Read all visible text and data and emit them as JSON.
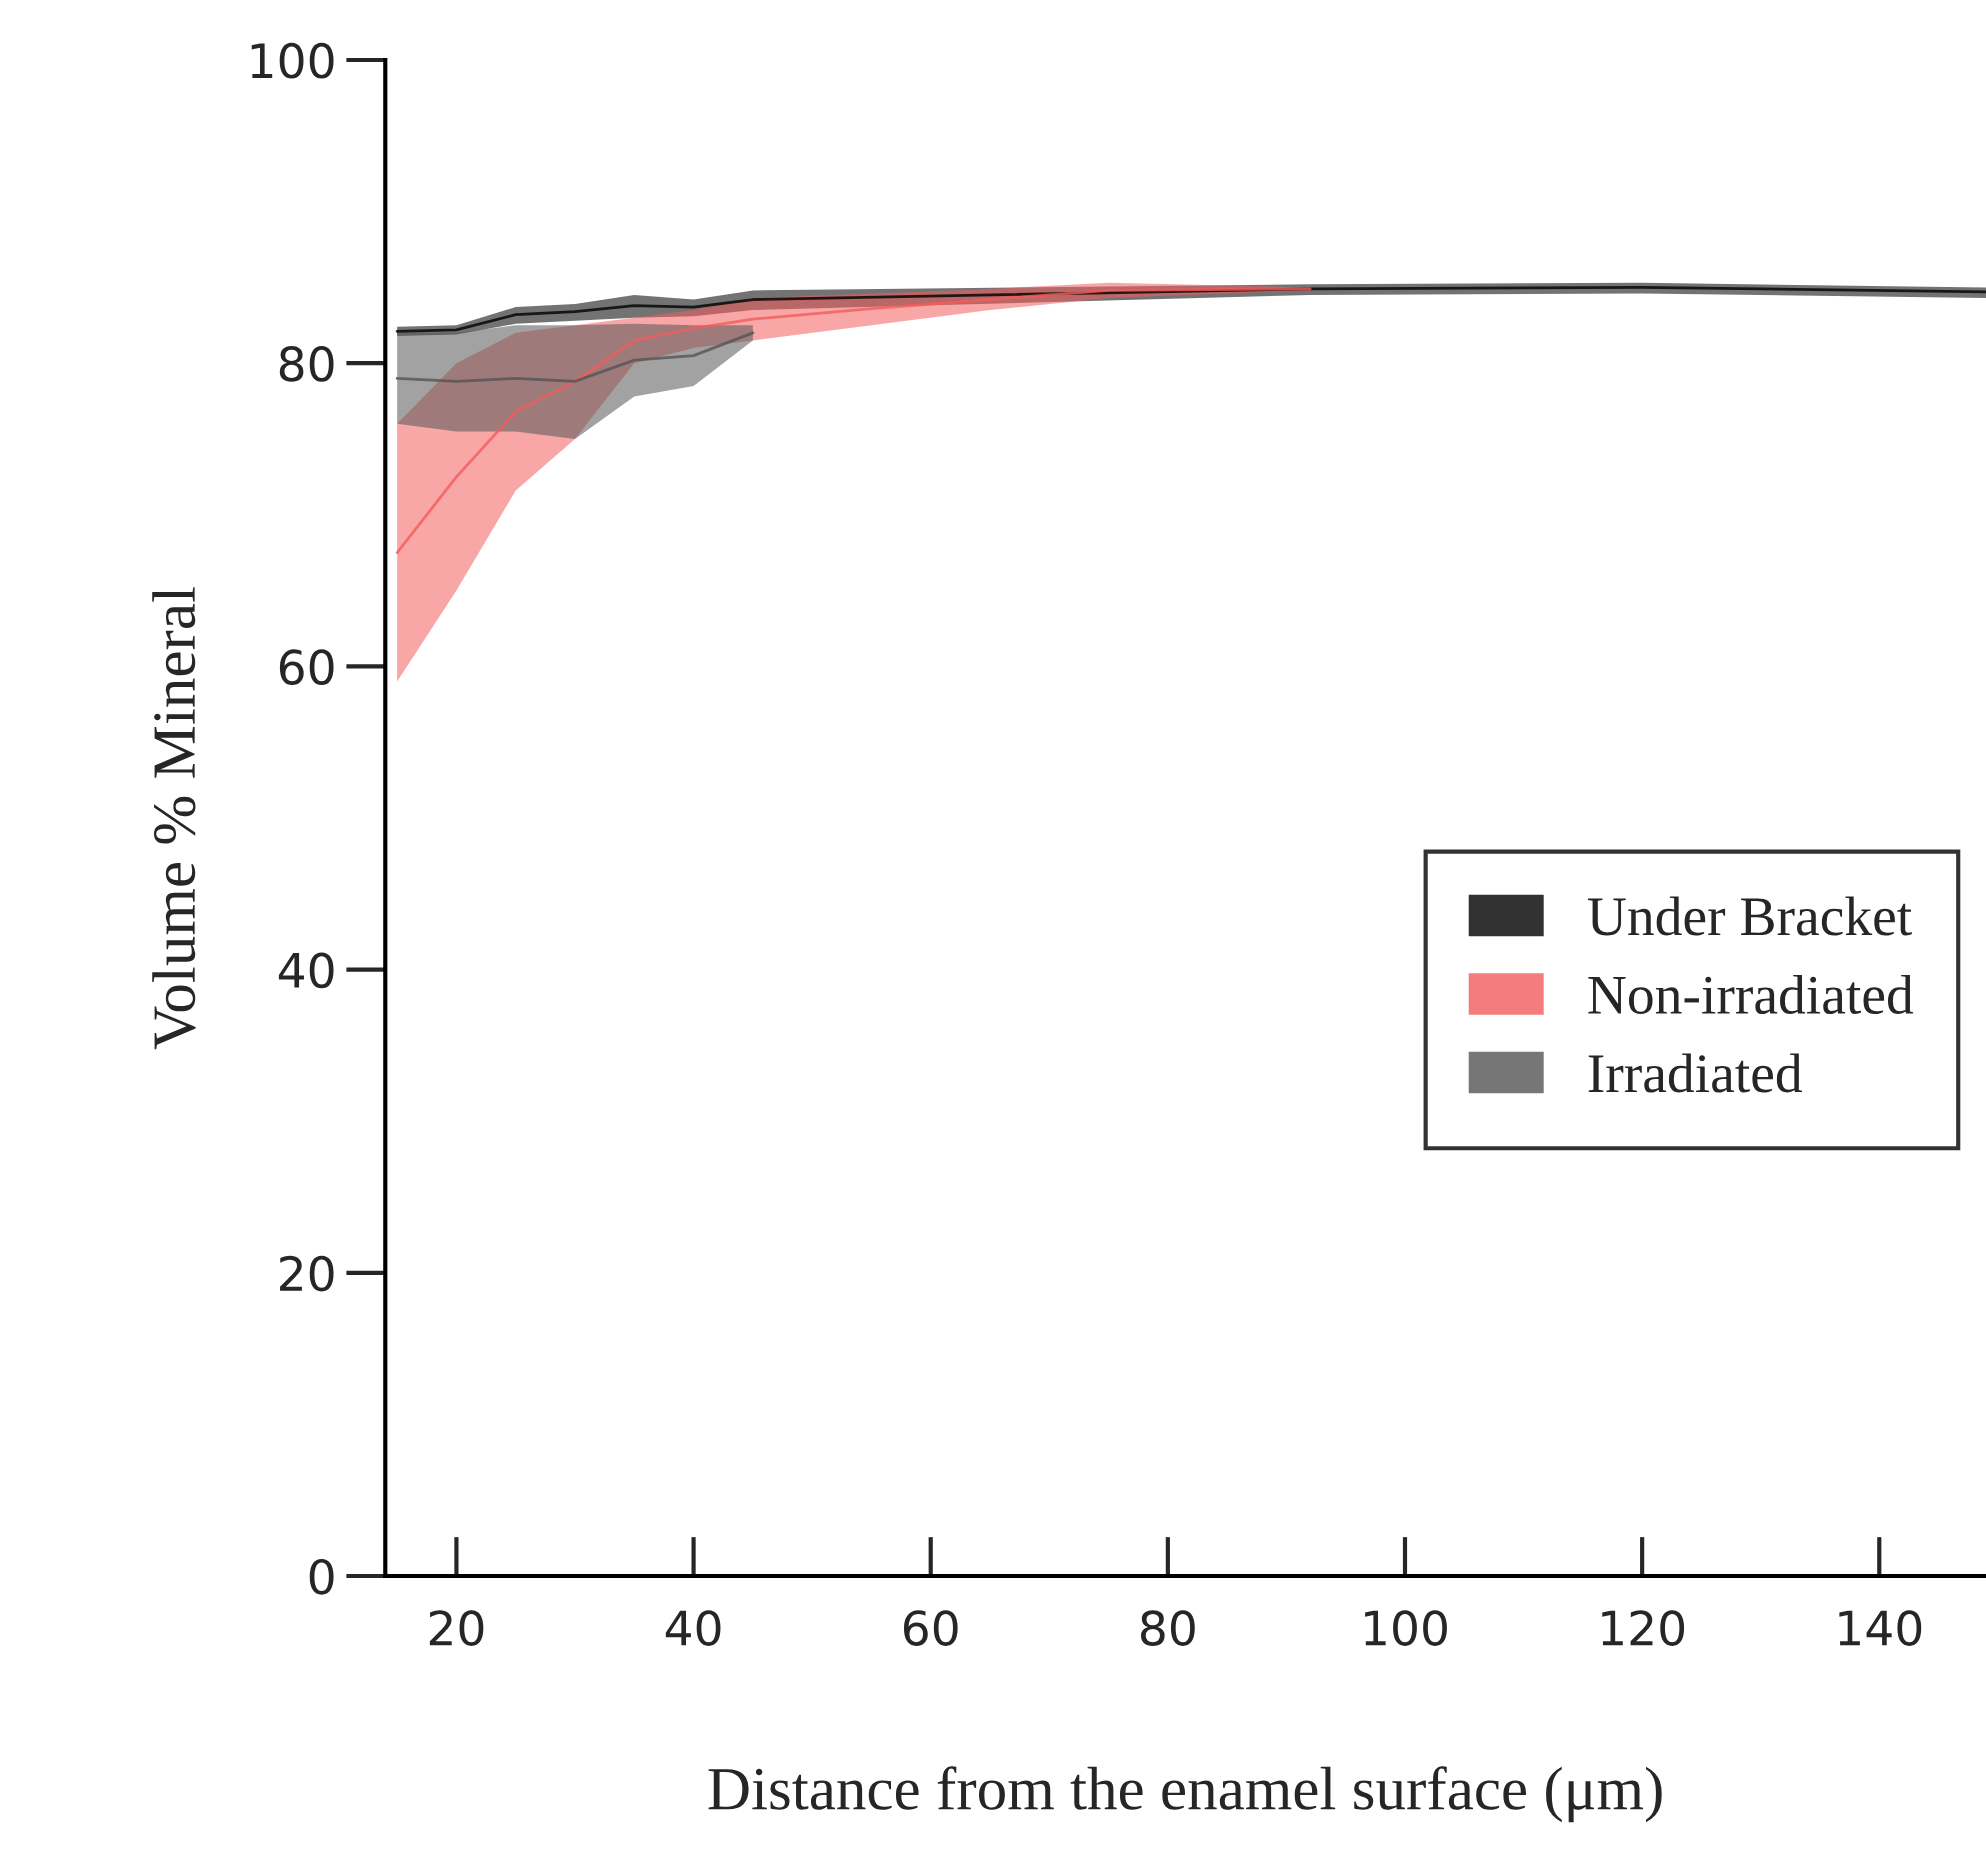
{
  "chart_data": {
    "type": "line",
    "xlabel": "Distance from the enamel surface (μm)",
    "ylabel": "Volume % Mineral",
    "xlim": [
      14,
      149
    ],
    "ylim": [
      0,
      100
    ],
    "xticks": [
      20,
      40,
      60,
      80,
      100,
      120,
      140
    ],
    "yticks": [
      0,
      20,
      40,
      60,
      80,
      100
    ],
    "grid": false,
    "legend": "right",
    "marker": "none",
    "line_style": "solid",
    "series": [
      {
        "name": "Under Bracket",
        "color": "#000000",
        "x": [
          15,
          20,
          25,
          30,
          35,
          40,
          45,
          92,
          120,
          149
        ],
        "values": [
          82.1,
          82.2,
          83.2,
          83.4,
          83.8,
          83.7,
          84.2,
          84.9,
          85,
          84.7
        ],
        "lower": [
          81.8,
          81.9,
          82.6,
          82.8,
          83,
          83.1,
          83.5,
          84.5,
          84.6,
          84.3
        ],
        "upper": [
          82.4,
          82.5,
          83.7,
          83.9,
          84.5,
          84.2,
          84.8,
          85.2,
          85.3,
          85
        ]
      },
      {
        "name": "Non-irradiated",
        "color": "#f25c5c",
        "x": [
          15,
          20,
          25,
          30,
          35,
          40,
          45,
          55,
          65,
          75,
          92
        ],
        "values": [
          67.5,
          72.5,
          76.8,
          78.8,
          81.5,
          82.3,
          82.9,
          83.6,
          84.2,
          84.8,
          84.9
        ],
        "lower": [
          59,
          65,
          71.6,
          75,
          80,
          81,
          81.5,
          82.5,
          83.5,
          84.3,
          84.8
        ],
        "upper": [
          76,
          80,
          82,
          82.5,
          83,
          83.5,
          84.3,
          84.6,
          84.9,
          85.3,
          85
        ]
      },
      {
        "name": "Irradiated",
        "color": "#555555",
        "x": [
          15,
          20,
          25,
          30,
          35,
          40,
          45
        ],
        "values": [
          79,
          78.8,
          79,
          78.8,
          80.2,
          80.5,
          82
        ],
        "lower": [
          76,
          75.5,
          75.5,
          75,
          77.8,
          78.5,
          81.5
        ],
        "upper": [
          82,
          82,
          82.5,
          82.5,
          82.6,
          82.5,
          82.5
        ]
      }
    ]
  }
}
